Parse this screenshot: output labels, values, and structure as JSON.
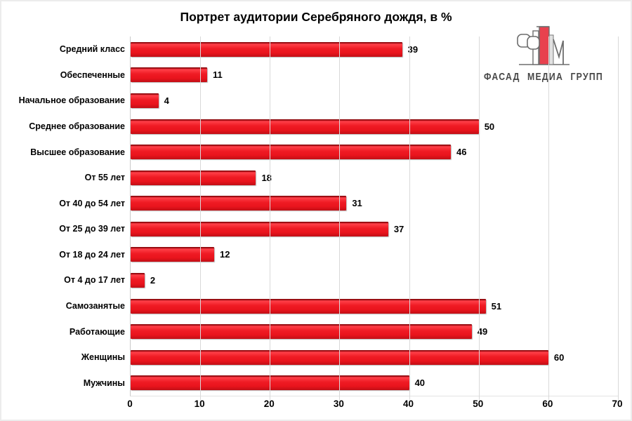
{
  "title": "Портрет аудитории Серебряного дождя, в %",
  "logo": {
    "text": "ФАСАД МЕДИА ГРУПП",
    "mark": "stylized-FM-buildings-logo"
  },
  "colors": {
    "bar": "#ee1c25",
    "bar_bevel_dark": "#8f060b",
    "grid": "#d9d9d9",
    "axis_line": "#c9c9c9",
    "text": "#000000",
    "logo_text": "#474747",
    "logo_red": "#e8414e",
    "background": "#ffffff",
    "frame_border": "#ececec"
  },
  "chart_data": {
    "type": "bar",
    "orientation": "horizontal",
    "title": "Портрет аудитории Серебряного дождя, в %",
    "categories": [
      "Средний класс",
      "Обеспеченные",
      "Начальное образование",
      "Среднее образование",
      "Высшее образование",
      "От 55 лет",
      "От 40 до 54 лет",
      "От 25 до 39 лет",
      "От 18 до 24 лет",
      "От 4 до 17 лет",
      "Самозанятые",
      "Работающие",
      "Женщины",
      "Мужчины"
    ],
    "values": [
      39,
      11,
      4,
      50,
      46,
      18,
      31,
      37,
      12,
      2,
      51,
      49,
      60,
      40
    ],
    "xlabel": "",
    "ylabel": "",
    "xlim": [
      0,
      70
    ],
    "xticks": [
      0,
      10,
      20,
      30,
      40,
      50,
      60,
      70
    ],
    "grid": true,
    "data_labels": true,
    "legend": "none"
  }
}
